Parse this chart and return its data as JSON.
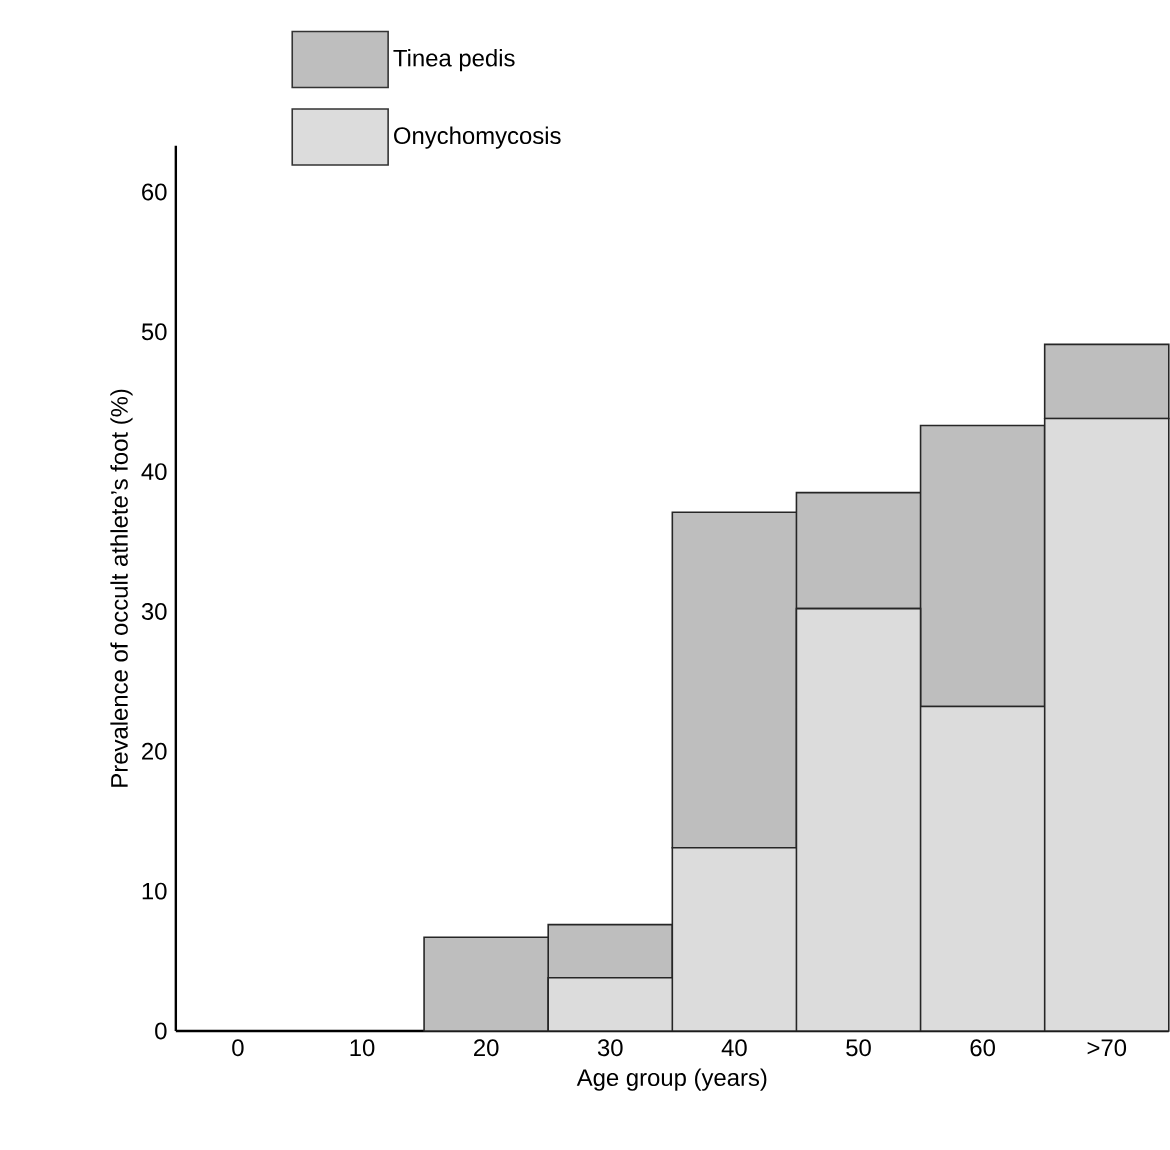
{
  "chart_data": {
    "type": "bar",
    "stacked": true,
    "xlabel": "Age group (years)",
    "ylabel": "Prevalence of occult athlete’s foot (%)",
    "categories": [
      "0",
      "10",
      "20",
      "30",
      "40",
      "50",
      "60",
      ">70"
    ],
    "series": [
      {
        "name": "Onychomycosis",
        "color": "#dcdcdc",
        "values": [
          0,
          0,
          0,
          3.8,
          13.1,
          30.2,
          23.2,
          43.8
        ]
      },
      {
        "name": "Tinea pedis",
        "color": "#bebebe",
        "values": [
          0,
          0,
          6.7,
          3.8,
          24.0,
          8.3,
          20.1,
          5.3
        ]
      }
    ],
    "ylim": [
      0,
      63.3
    ],
    "yticks": [
      0,
      10,
      20,
      30,
      40,
      50,
      60
    ],
    "legend": "top",
    "grid": false
  }
}
